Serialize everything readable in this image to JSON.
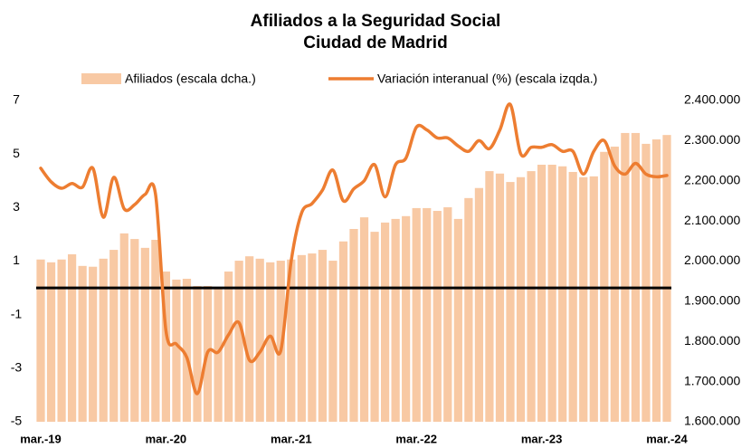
{
  "chart_data": {
    "type": "bar_line",
    "title": "Afiliados a la Seguridad Social",
    "subtitle": "Ciudad de Madrid",
    "categories": [
      "mar.-19",
      null,
      null,
      null,
      null,
      null,
      null,
      null,
      null,
      null,
      null,
      null,
      "mar.-20",
      null,
      null,
      null,
      null,
      null,
      null,
      null,
      null,
      null,
      null,
      null,
      "mar.-21",
      null,
      null,
      null,
      null,
      null,
      null,
      null,
      null,
      null,
      null,
      null,
      "mar.-22",
      null,
      null,
      null,
      null,
      null,
      null,
      null,
      null,
      null,
      null,
      null,
      "mar.-23",
      null,
      null,
      null,
      null,
      null,
      null,
      null,
      null,
      null,
      null,
      null,
      "mar.-24"
    ],
    "series": [
      {
        "name": "Afiliados (escala dcha.)",
        "kind": "bar",
        "axis": "y2",
        "color": "#f8c9a4",
        "values": [
          2004000,
          1997000,
          2004000,
          2017000,
          1988000,
          1986000,
          2006000,
          2028000,
          2069000,
          2055000,
          2033000,
          2053000,
          1974000,
          1954000,
          1956000,
          1938000,
          1938000,
          1932000,
          1974000,
          2001000,
          2012000,
          2006000,
          1997000,
          2001000,
          2004000,
          2015000,
          2019000,
          2028000,
          2001000,
          2049000,
          2080000,
          2109000,
          2073000,
          2096000,
          2105000,
          2112000,
          2132000,
          2132000,
          2125000,
          2134000,
          2105000,
          2157000,
          2182000,
          2224000,
          2218000,
          2197000,
          2209000,
          2224000,
          2240000,
          2240000,
          2236000,
          2222000,
          2209000,
          2211000,
          2272000,
          2285000,
          2319000,
          2319000,
          2292000,
          2303000,
          2314000
        ]
      },
      {
        "name": "Variación interanual (%) (escala izqda.)",
        "kind": "line",
        "axis": "y",
        "color": "#ed7d31",
        "values": [
          4.47,
          3.96,
          3.72,
          3.9,
          3.76,
          4.47,
          2.64,
          4.13,
          2.95,
          3.11,
          3.49,
          3.5,
          -1.6,
          -2.1,
          -2.6,
          -3.95,
          -2.4,
          -2.4,
          -1.75,
          -1.3,
          -2.7,
          -2.4,
          -1.8,
          -2.35,
          1.0,
          2.8,
          3.15,
          3.65,
          4.4,
          3.25,
          3.7,
          4.0,
          4.6,
          3.4,
          4.6,
          4.85,
          6.0,
          5.9,
          5.6,
          5.6,
          5.3,
          5.1,
          5.5,
          5.2,
          5.9,
          6.85,
          5.0,
          5.25,
          5.25,
          5.35,
          5.1,
          5.1,
          4.25,
          5.1,
          5.5,
          4.55,
          4.25,
          4.65,
          4.25,
          4.15,
          4.2
        ]
      }
    ],
    "ylim": [
      -5,
      7
    ],
    "yticks": [
      7,
      5,
      3,
      1,
      -1,
      -3,
      -5
    ],
    "y2lim": [
      1600000,
      2400000
    ],
    "y2ticks": [
      {
        "value": 2400000,
        "label": "2.400.000"
      },
      {
        "value": 2300000,
        "label": "2.300.000"
      },
      {
        "value": 2200000,
        "label": "2.200.000"
      },
      {
        "value": 2100000,
        "label": "2.100.000"
      },
      {
        "value": 2000000,
        "label": "2.000.000"
      },
      {
        "value": 1900000,
        "label": "1.900.000"
      },
      {
        "value": 1800000,
        "label": "1.800.000"
      },
      {
        "value": 1700000,
        "label": "1.700.000"
      },
      {
        "value": 1600000,
        "label": "1.600.000"
      }
    ],
    "legend": "top"
  }
}
